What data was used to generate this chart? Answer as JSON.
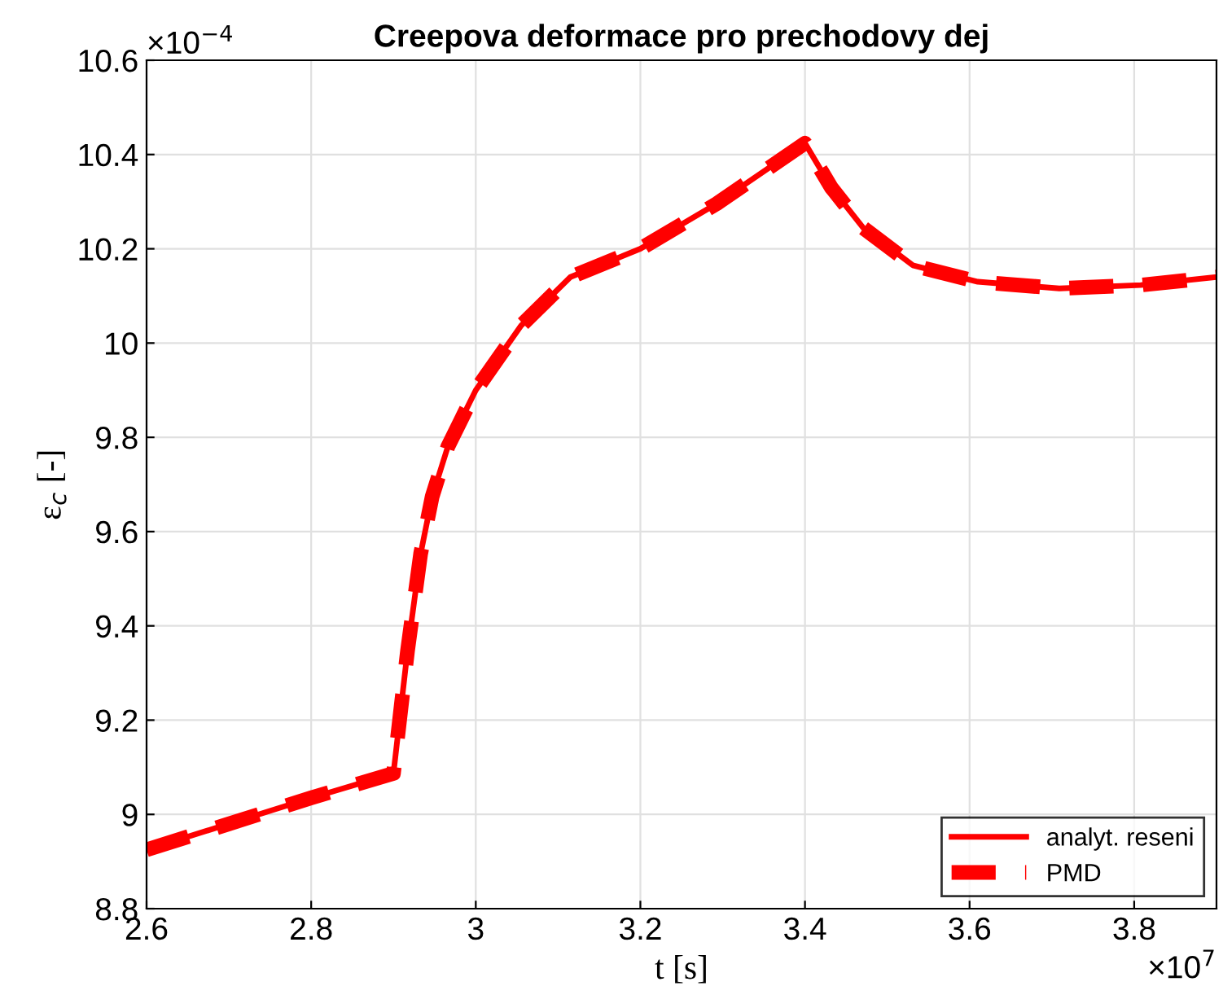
{
  "chart_data": {
    "type": "line",
    "title": "Creepova deformace pro prechodovy dej",
    "xlabel": "t [s]",
    "ylabel": "ε$_{c}$ [-]",
    "annotations": [
      "×10$^{7}$",
      "×10$^{−4}$"
    ],
    "xlim": [
      2.6,
      3.9
    ],
    "xticks": [
      2.6,
      2.8,
      3,
      3.2,
      3.4,
      3.6,
      3.8
    ],
    "ylim": [
      8.8,
      10.6
    ],
    "yticks": [
      8.8,
      9,
      9.2,
      9.4,
      9.6,
      9.8,
      10,
      10.2,
      10.4,
      10.6
    ],
    "x": [
      2.6,
      2.7,
      2.8,
      2.9,
      2.917,
      2.933,
      2.947,
      2.966,
      3.0,
      3.055,
      3.115,
      3.2,
      3.293,
      3.4,
      3.432,
      3.471,
      3.531,
      3.61,
      3.709,
      3.808,
      3.9
    ],
    "series": [
      {
        "name": "analyt. reseni",
        "color": "#ff0000",
        "line_style": "solid",
        "values": [
          8.925,
          8.98,
          9.035,
          9.087,
          9.346,
          9.553,
          9.674,
          9.78,
          9.9,
          10.037,
          10.14,
          10.2,
          10.296,
          10.424,
          10.33,
          10.244,
          10.165,
          10.13,
          10.116,
          10.123,
          10.14
        ]
      },
      {
        "name": "PMD",
        "color": "#ff0000",
        "line_style": "dashed",
        "values": [
          8.925,
          8.98,
          9.035,
          9.087,
          9.346,
          9.553,
          9.674,
          9.78,
          9.9,
          10.037,
          10.14,
          10.2,
          10.296,
          10.424,
          10.33,
          10.244,
          10.165,
          10.13,
          10.116,
          10.123,
          10.14
        ]
      }
    ],
    "grid": true,
    "legend": "bottom right",
    "marker": "none"
  }
}
